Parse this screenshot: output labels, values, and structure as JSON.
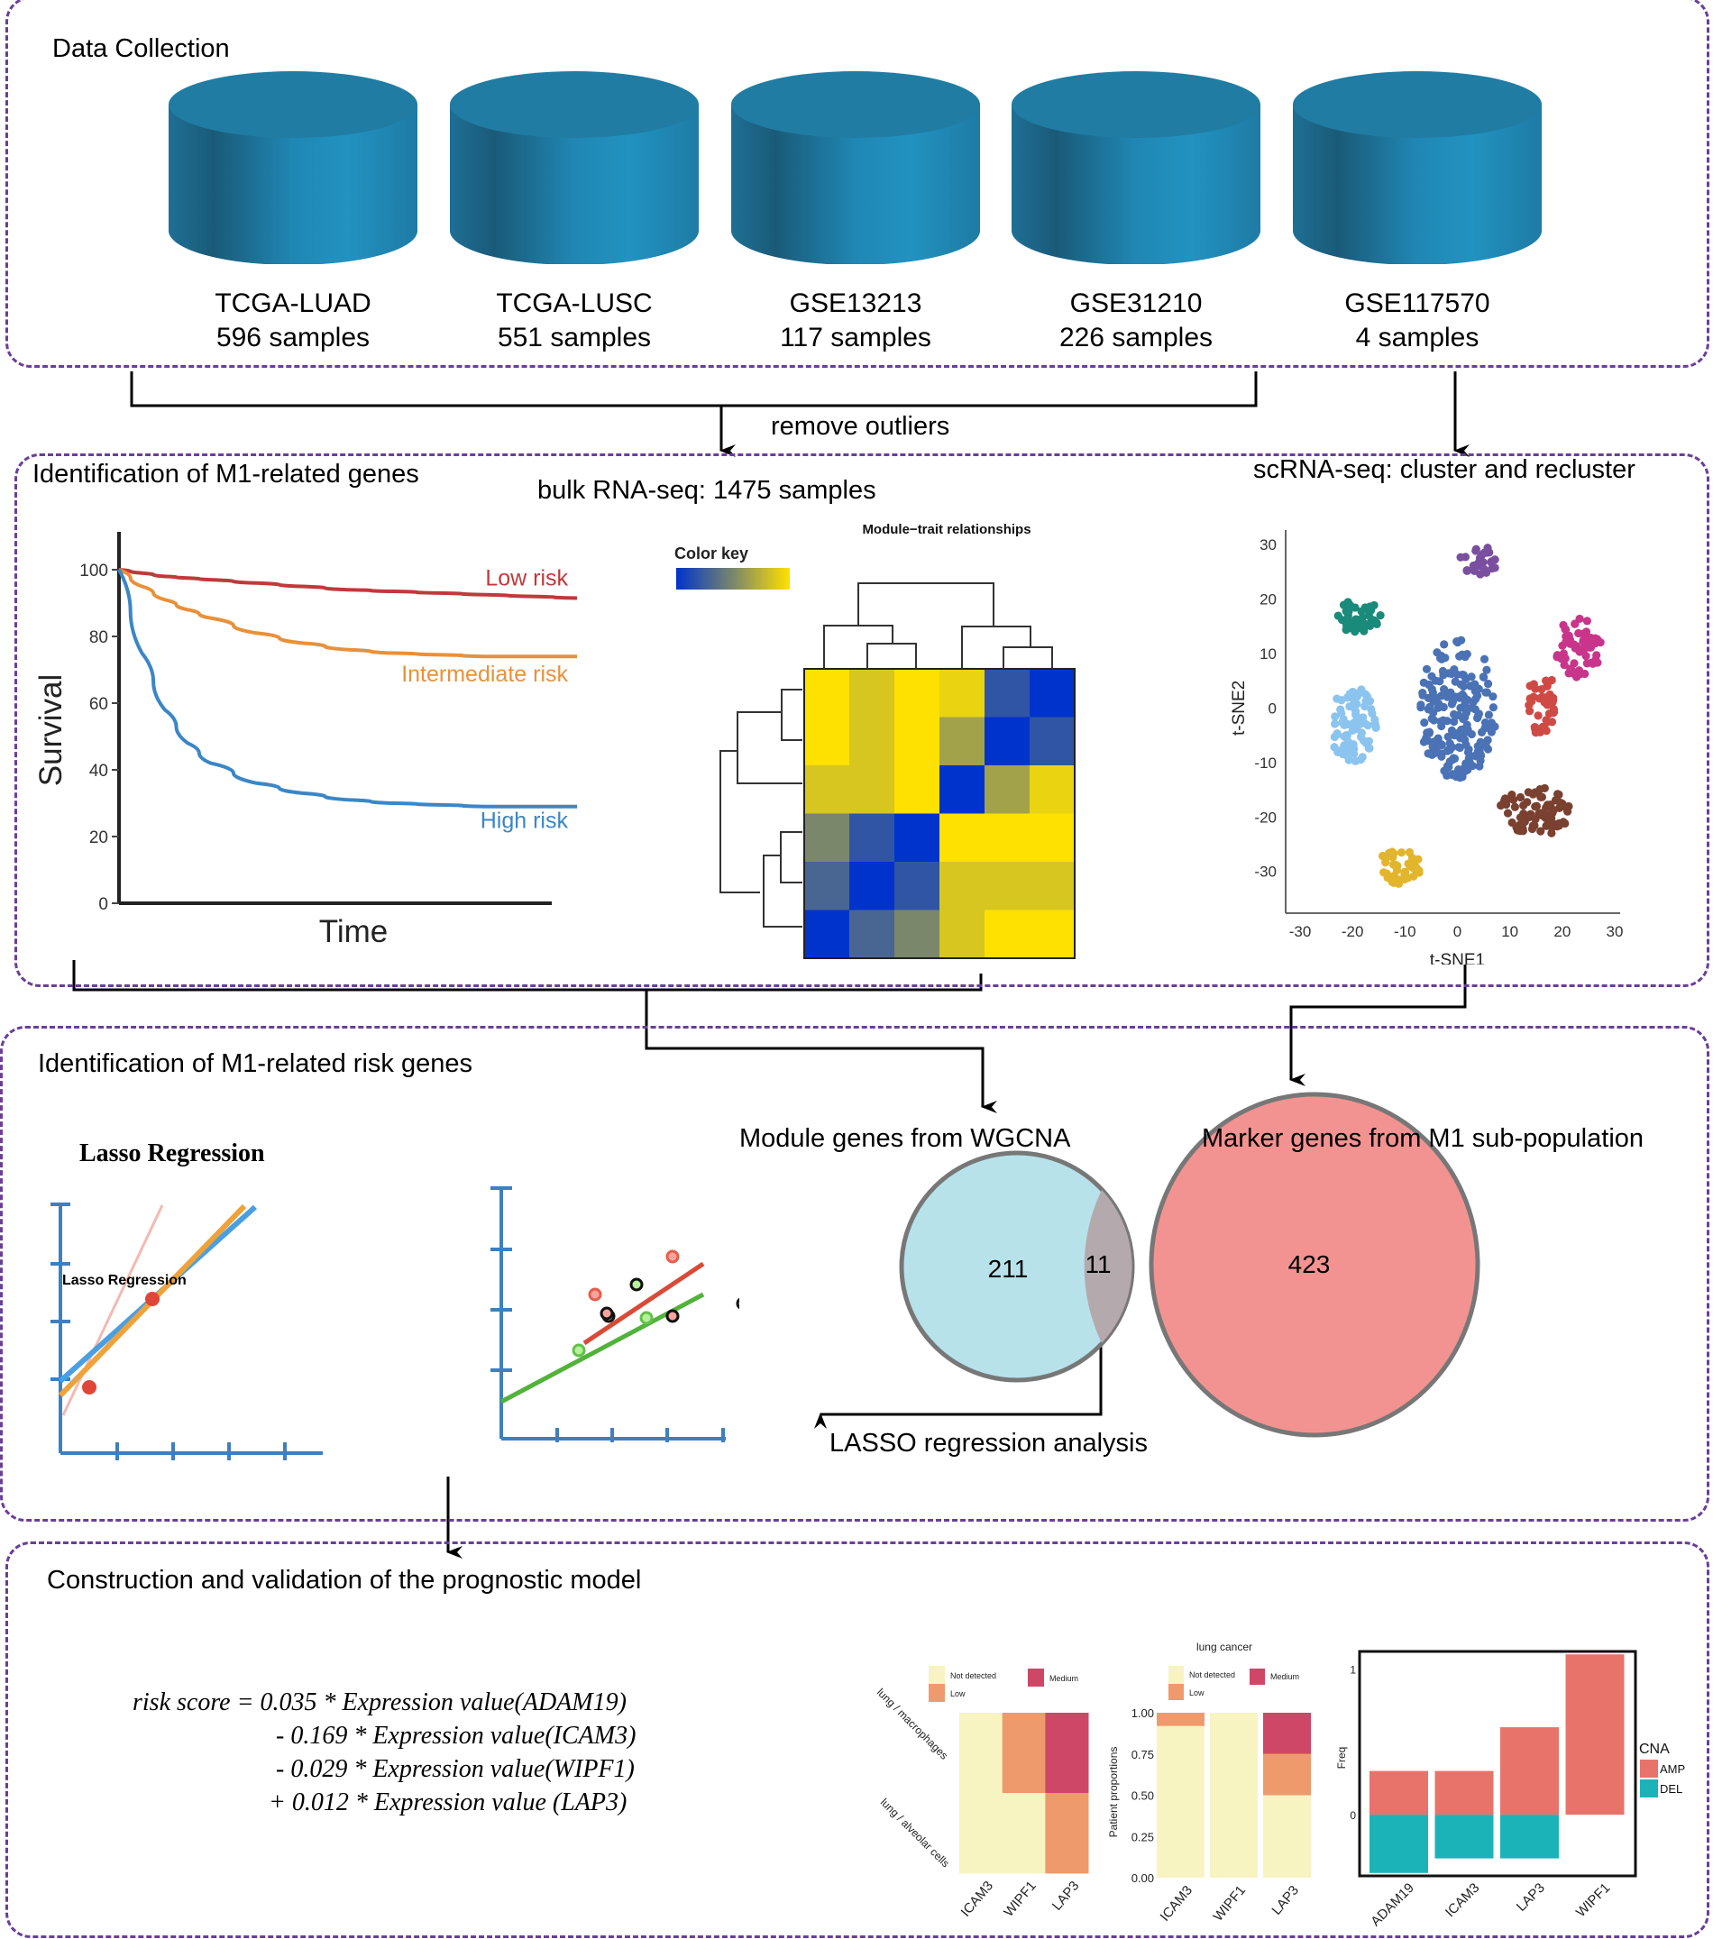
{
  "sections": {
    "data_collection": {
      "title": "Data Collection",
      "datasets": [
        {
          "name": "TCGA-LUAD",
          "samples": "596 samples"
        },
        {
          "name": "TCGA-LUSC",
          "samples": "551 samples"
        },
        {
          "name": "GSE13213",
          "samples": "117 samples"
        },
        {
          "name": "GSE31210",
          "samples": "226 samples"
        },
        {
          "name": "GSE117570",
          "samples": "4 samples"
        }
      ]
    },
    "m1_genes": {
      "title": "Identification of M1-related genes",
      "bulk_label": "bulk RNA-seq: 1475 samples",
      "sc_label": "scRNA-seq: cluster and recluster"
    },
    "risk_genes": {
      "title": "Identification of M1-related risk genes",
      "lasso_title": "Lasso Regression",
      "lasso_inner_label": "Lasso Regression",
      "lasso_analysis_label": "LASSO regression analysis"
    },
    "model": {
      "title": "Construction and validation of the prognostic model",
      "formula_lines": [
        "risk score = 0.035 * Expression value(ADAM19)",
        "- 0.169 * Expression value(ICAM3)",
        "- 0.029 * Expression value(WIPF1)",
        "+ 0.012 * Expression value (LAP3)"
      ]
    }
  },
  "flow": {
    "remove_outliers": "remove outliers"
  },
  "colors": {
    "panel_border": "#6a3d9a",
    "cylinder": "#1f7fa8",
    "low_risk": "#c0393b",
    "intermediate_risk": "#e8913a",
    "high_risk": "#3b86c6",
    "venn_left": "#b7e2ea",
    "venn_right": "#f28d8b",
    "amp": "#e8736b",
    "del": "#1cb3b8"
  },
  "chart_data": [
    {
      "id": "survival",
      "type": "line",
      "title": "",
      "xlabel": "Time",
      "ylabel": "Survival",
      "ylim": [
        0,
        100
      ],
      "yticks": [
        "0",
        "20",
        "40",
        "60",
        "80",
        "100"
      ],
      "x": [
        0,
        0.05,
        0.1,
        0.15,
        0.2,
        0.3,
        0.4,
        0.5,
        0.6,
        0.7,
        0.8,
        0.9,
        1.0
      ],
      "series": [
        {
          "name": "Low risk",
          "color": "#c0393b",
          "values": [
            100,
            99,
            98,
            97.5,
            97,
            96,
            95,
            94,
            93.5,
            93,
            92.5,
            92,
            91.5
          ]
        },
        {
          "name": "Intermediate risk",
          "color": "#e8913a",
          "values": [
            100,
            95,
            91,
            88,
            85.5,
            81,
            78,
            76,
            75,
            74.5,
            74,
            74,
            74
          ]
        },
        {
          "name": "High risk",
          "color": "#3b86c6",
          "values": [
            100,
            75,
            58,
            48,
            42,
            36,
            33,
            31,
            30,
            29.5,
            29,
            29,
            29
          ]
        }
      ]
    },
    {
      "id": "module-trait",
      "type": "heatmap",
      "title": "Module−trait relationships",
      "legend_title": "Color key",
      "scale": [
        "#0033cc",
        "#7a876b",
        "#ffe100"
      ],
      "values": [
        [
          1.0,
          0.85,
          1.0,
          0.92,
          0.2,
          0.0
        ],
        [
          1.0,
          0.85,
          1.0,
          0.65,
          0.0,
          0.2
        ],
        [
          0.85,
          0.85,
          1.0,
          0.0,
          0.65,
          0.92
        ],
        [
          0.5,
          0.2,
          0.0,
          1.0,
          1.0,
          1.0
        ],
        [
          0.3,
          0.0,
          0.2,
          0.85,
          0.85,
          0.85
        ],
        [
          0.0,
          0.3,
          0.5,
          0.85,
          1.0,
          1.0
        ]
      ]
    },
    {
      "id": "tsne",
      "type": "scatter",
      "xlabel": "t-SNE1",
      "ylabel": "t-SNE2",
      "xlim": [
        -30,
        30
      ],
      "ylim": [
        -36,
        32
      ],
      "xticks": [
        "-30",
        "-20",
        "-10",
        "0",
        "10",
        "20",
        "30"
      ],
      "yticks": [
        "-30",
        "-20",
        "-10",
        "0",
        "10",
        "20",
        "30"
      ],
      "clusters": [
        {
          "color": "#1a8a7a",
          "center": [
            -19,
            17
          ],
          "spread": [
            4.5,
            3.2
          ],
          "n": 45
        },
        {
          "color": "#8bc4ee",
          "center": [
            -20,
            -3
          ],
          "spread": [
            4.5,
            7
          ],
          "n": 80
        },
        {
          "color": "#4a72b5",
          "center": [
            0,
            0
          ],
          "spread": [
            7.5,
            13
          ],
          "n": 190
        },
        {
          "color": "#7b4fa0",
          "center": [
            4,
            27
          ],
          "spread": [
            3.5,
            3
          ],
          "n": 26
        },
        {
          "color": "#c8358a",
          "center": [
            23,
            11
          ],
          "spread": [
            4.5,
            5.5
          ],
          "n": 65
        },
        {
          "color": "#cf4a45",
          "center": [
            16,
            1
          ],
          "spread": [
            3,
            6
          ],
          "n": 42
        },
        {
          "color": "#7a4030",
          "center": [
            15,
            -19
          ],
          "spread": [
            7,
            4.5
          ],
          "n": 75
        },
        {
          "color": "#e3b52c",
          "center": [
            -11,
            -29
          ],
          "spread": [
            4,
            3.5
          ],
          "n": 45
        }
      ]
    },
    {
      "id": "venn",
      "type": "venn",
      "sets": [
        {
          "name": "Module genes from WGCNA",
          "only": 211
        },
        {
          "name": "Marker genes from M1 sub-population",
          "only": 423
        }
      ],
      "intersection": 11
    },
    {
      "id": "tissue-heatmap",
      "type": "heatmap",
      "rows": [
        "lung / macrophages",
        "lung / alveolar cells"
      ],
      "columns": [
        "ICAM3",
        "WIPF1",
        "LAP3"
      ],
      "cells": [
        [
          "Not detected",
          "Low",
          "Medium"
        ],
        [
          "Not detected",
          "Not detected",
          "Low"
        ]
      ],
      "legend": [
        {
          "label": "Not detected",
          "color": "#f7f4c2"
        },
        {
          "label": "Low",
          "color": "#ef9a6c"
        },
        {
          "label": "Medium",
          "color": "#cf4766"
        }
      ]
    },
    {
      "id": "patient-proportions",
      "type": "bar",
      "stacked": true,
      "title": "lung cancer",
      "ylabel": "Patient proportions",
      "ylim": [
        0,
        1
      ],
      "yticks": [
        "0.00",
        "0.25",
        "0.50",
        "0.75",
        "1.00"
      ],
      "categories": [
        "ICAM3",
        "WIPF1",
        "LAP3"
      ],
      "series": [
        {
          "name": "Not detected",
          "color": "#f7f4c2",
          "values": [
            0.92,
            1.0,
            0.5
          ]
        },
        {
          "name": "Low",
          "color": "#ef9a6c",
          "values": [
            0.08,
            0.0,
            0.25
          ]
        },
        {
          "name": "Medium",
          "color": "#cf4766",
          "values": [
            0.0,
            0.0,
            0.25
          ]
        }
      ]
    },
    {
      "id": "cna-freq",
      "type": "bar",
      "ylabel": "Freq",
      "ylim": [
        -0.42,
        1.12
      ],
      "yticks": [
        "0",
        "1"
      ],
      "legend_title": "CNA",
      "categories": [
        "ADAM19",
        "ICAM3",
        "LAP3",
        "WIPF1"
      ],
      "series": [
        {
          "name": "AMP",
          "color": "#e8736b",
          "values": [
            0.3,
            0.3,
            0.6,
            1.1
          ]
        },
        {
          "name": "DEL",
          "color": "#1cb3b8",
          "values": [
            -0.4,
            -0.3,
            -0.3,
            0
          ]
        }
      ]
    }
  ]
}
